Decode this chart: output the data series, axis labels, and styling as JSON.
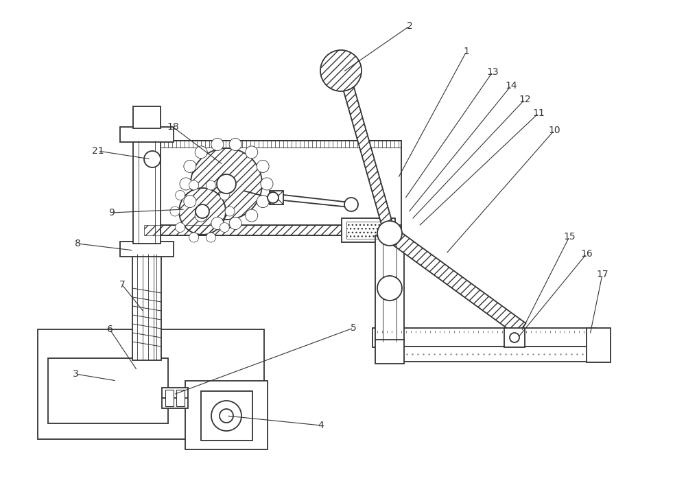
{
  "bg_color": "#ffffff",
  "line_color": "#333333",
  "figsize": [
    10.0,
    7.01
  ],
  "dpi": 100
}
